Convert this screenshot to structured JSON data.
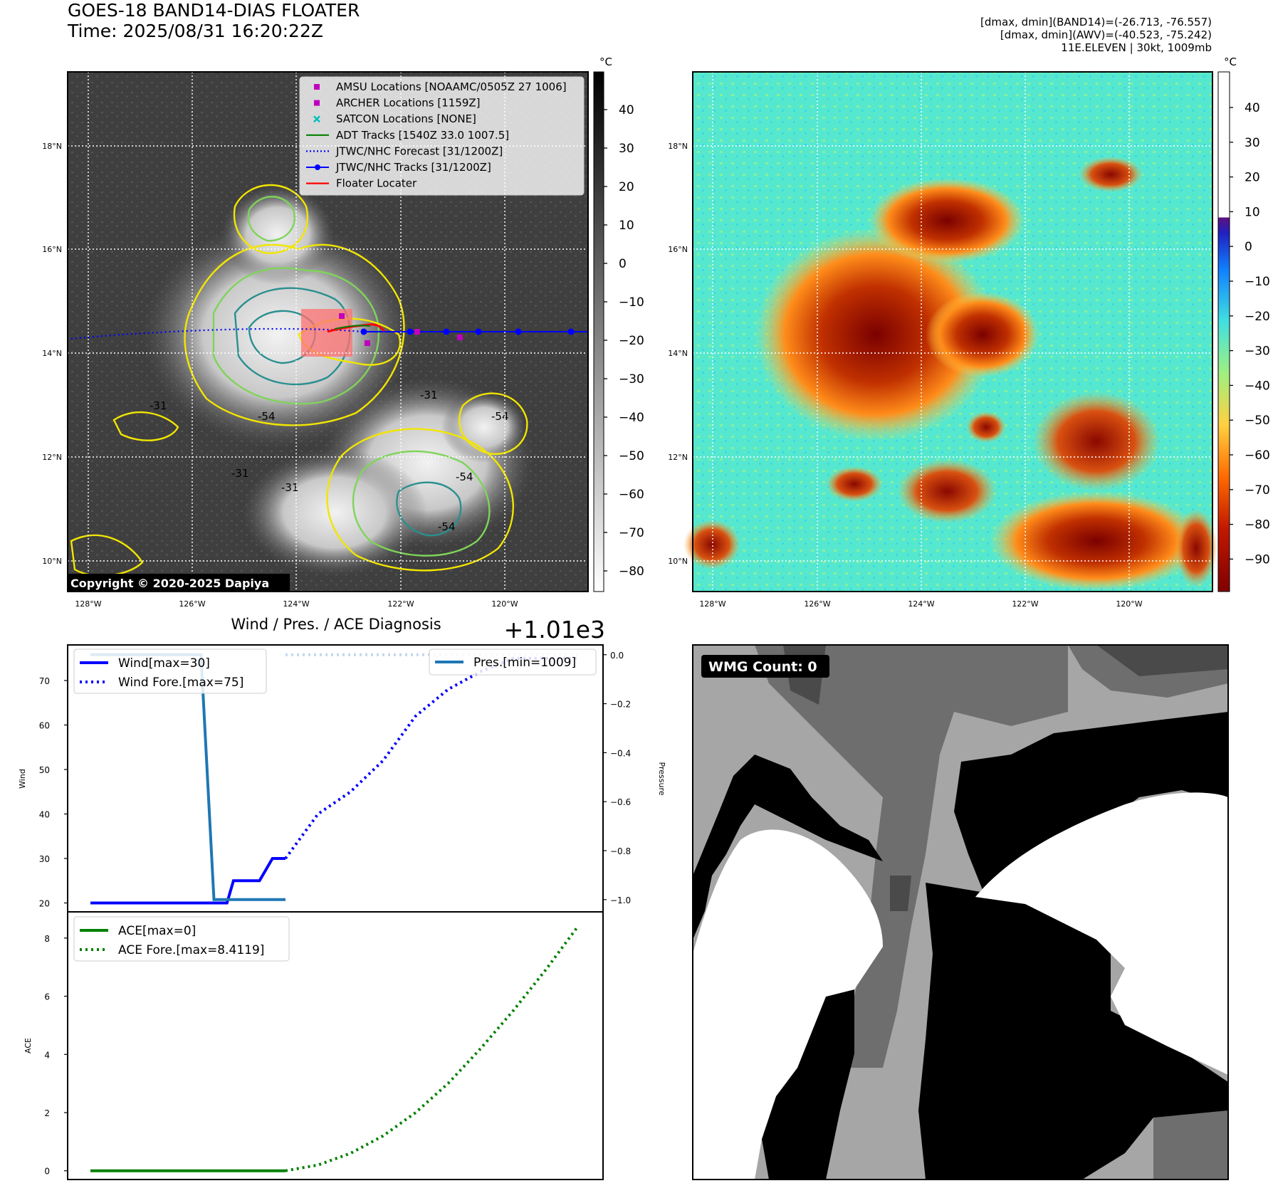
{
  "header": {
    "title": "GOES-18 BAND14-DIAS FLOATER",
    "time": "Time: 2025/08/31 16:20:22Z",
    "dmax_band14": "[dmax, dmin](BAND14)=(-26.713, -76.557)",
    "dmax_awv": "[dmax, dmin](AWV)=(-40.523, -75.242)",
    "storm": "11E.ELEVEN | 30kt, 1009mb"
  },
  "map": {
    "lon_ticks": [
      "128°W",
      "126°W",
      "124°W",
      "122°W",
      "120°W"
    ],
    "lat_ticks": [
      "18°N",
      "16°N",
      "14°N",
      "12°N",
      "10°N"
    ],
    "contour_labels": [
      "-31",
      "-54",
      "-31",
      "-54",
      "-31",
      "-31",
      "-54",
      "-54"
    ],
    "copyright": "Copyright © 2020-2025 Dapiya",
    "legend": [
      {
        "label": "AMSU Locations [NOAAMC/0505Z 27 1006]",
        "symbol": "square",
        "color": "#bf00bf"
      },
      {
        "label": "ARCHER Locations [1159Z]",
        "symbol": "square",
        "color": "#bf00bf"
      },
      {
        "label": "SATCON Locations [NONE]",
        "symbol": "x",
        "color": "#00bfbf"
      },
      {
        "label": "ADT Tracks [1540Z 33.0 1007.5]",
        "symbol": "line",
        "color": "#008000"
      },
      {
        "label": "JTWC/NHC Forecast [31/1200Z]",
        "symbol": "dotted",
        "color": "#0000ff"
      },
      {
        "label": "JTWC/NHC Tracks [31/1200Z]",
        "symbol": "line-dot",
        "color": "#0000ff"
      },
      {
        "label": "Floater Locater",
        "symbol": "line",
        "color": "#ff0000"
      }
    ],
    "gray_colorbar": {
      "unit": "°C",
      "ticks": [
        "40",
        "30",
        "20",
        "10",
        "0",
        "−10",
        "−20",
        "−30",
        "−40",
        "−50",
        "−60",
        "−70",
        "−80"
      ]
    },
    "color_colorbar": {
      "unit": "°C",
      "ticks": [
        "40",
        "30",
        "20",
        "10",
        "0",
        "−10",
        "−20",
        "−30",
        "−40",
        "−50",
        "−60",
        "−70",
        "−80",
        "−90"
      ]
    }
  },
  "wmg": {
    "label": "WMG Count: 0"
  },
  "chart_data": [
    {
      "type": "line",
      "title": "Wind / Pres. / ACE Diagnosis",
      "offset_text": "+1.01e3",
      "ylabel": "Wind",
      "y2label": "Pressure",
      "ylim": [
        18,
        78
      ],
      "y2lim": [
        -1.05,
        0.04
      ],
      "yticks": [
        "20",
        "30",
        "40",
        "50",
        "60",
        "70"
      ],
      "y2ticks": [
        "0.0",
        "−0.2",
        "−0.4",
        "−0.6",
        "−0.8",
        "−1.0"
      ],
      "series": [
        {
          "name": "Wind[max=30]",
          "color": "#0000ff",
          "style": "solid",
          "x": [
            0,
            21,
            22,
            26,
            28,
            30
          ],
          "values": [
            20,
            20,
            25,
            25,
            30,
            30
          ]
        },
        {
          "name": "Wind Fore.[max=75]",
          "color": "#0000ff",
          "style": "dotted",
          "x": [
            30,
            35,
            40,
            45,
            50,
            55,
            60,
            65,
            70,
            75
          ],
          "values": [
            30,
            40,
            45,
            52,
            62,
            68,
            72,
            75,
            75,
            75
          ]
        },
        {
          "name": "Pres.[min=1009]",
          "color": "#1f77b4",
          "style": "solid",
          "axis": "right",
          "x": [
            0,
            17,
            19,
            30
          ],
          "values": [
            0.0,
            0.0,
            -1.0,
            -1.0
          ]
        },
        {
          "name": "",
          "color": "#c4d7ee",
          "style": "dotted",
          "axis": "right",
          "x": [
            30,
            40,
            50,
            60,
            70,
            75
          ],
          "values": [
            0.0,
            0.0,
            0.0,
            0.0,
            0.0,
            0.0
          ]
        }
      ]
    },
    {
      "type": "line",
      "ylabel": "ACE",
      "ylim": [
        -0.3,
        8.9
      ],
      "yticks": [
        "0",
        "2",
        "4",
        "6",
        "8"
      ],
      "series": [
        {
          "name": "ACE[max=0]",
          "color": "#008000",
          "style": "solid",
          "x": [
            0,
            30
          ],
          "values": [
            0,
            0
          ]
        },
        {
          "name": "ACE Fore.[max=8.4119]",
          "color": "#008000",
          "style": "dotted",
          "x": [
            30,
            35,
            40,
            45,
            50,
            55,
            60,
            65,
            70,
            75
          ],
          "values": [
            0,
            0.2,
            0.6,
            1.2,
            2.0,
            3.0,
            4.2,
            5.5,
            6.9,
            8.41
          ]
        }
      ]
    }
  ]
}
